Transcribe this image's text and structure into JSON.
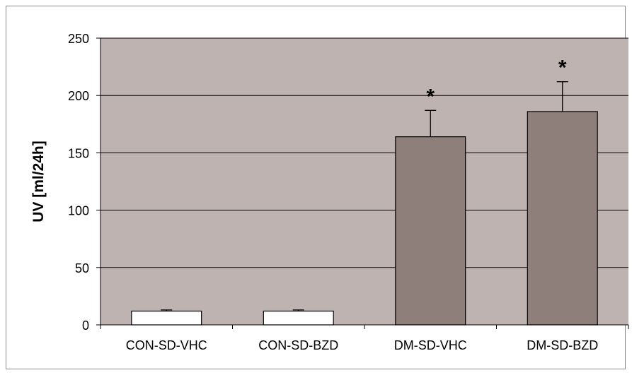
{
  "colors": {
    "plot_background": "#beb3b0",
    "bar_control": "#ffffff",
    "bar_dm": "#8e7f7b",
    "gridline": "#000000"
  },
  "chart_data": {
    "type": "bar",
    "ylabel": "UV [ml/24h]",
    "ylim": [
      0,
      250
    ],
    "yticks": [
      0,
      50,
      100,
      150,
      200,
      250
    ],
    "grid": true,
    "categories": [
      "CON-SD-VHC",
      "CON-SD-BZD",
      "DM-SD-VHC",
      "DM-SD-BZD"
    ],
    "series": [
      {
        "values": [
          12,
          12,
          164,
          186
        ],
        "errors": [
          1,
          1,
          23,
          26
        ],
        "significance": [
          "",
          "",
          "*",
          "*"
        ]
      }
    ]
  }
}
